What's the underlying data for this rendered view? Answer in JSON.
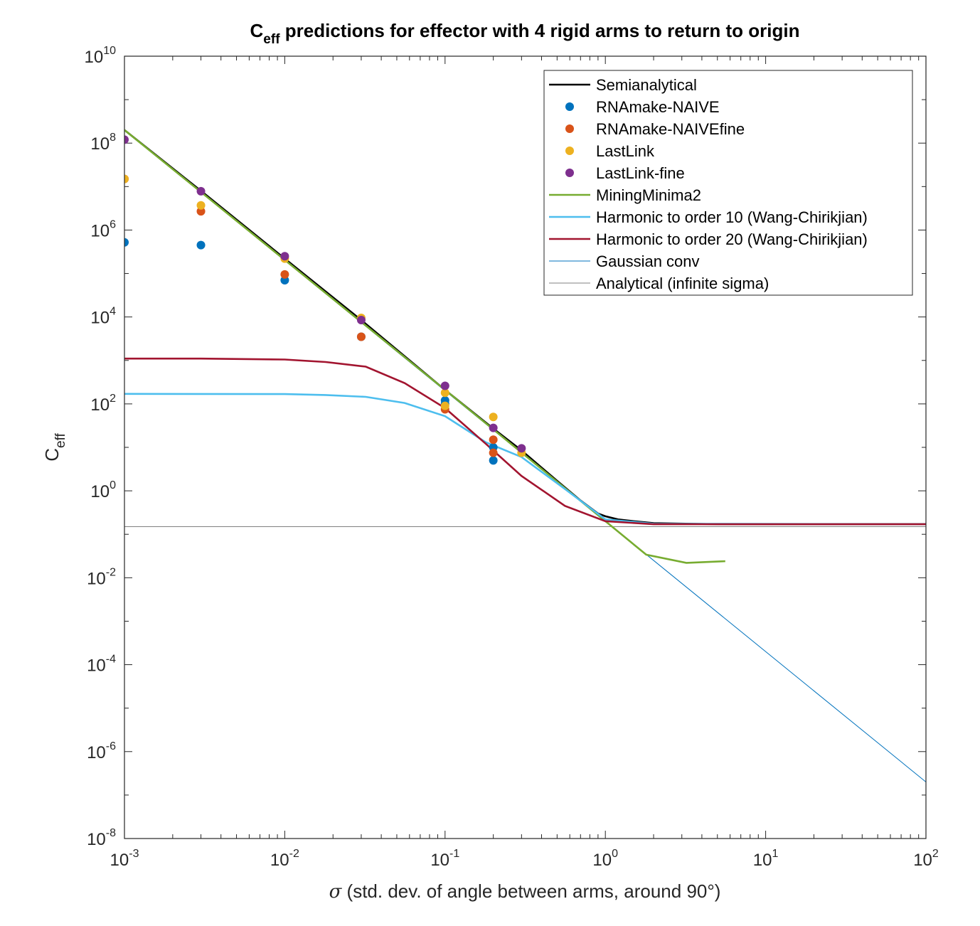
{
  "chart_data": {
    "type": "line",
    "title": {
      "main": "C",
      "sub": "eff",
      "rest": " predictions for effector with 4 rigid arms to return to origin"
    },
    "xlabel": {
      "symbol": "σ",
      "text": " (std. dev. of angle between arms, around 90°)"
    },
    "ylabel": {
      "main": "C",
      "sub": "eff"
    },
    "xscale": "log",
    "yscale": "log",
    "xlim": [
      0.001,
      100
    ],
    "ylim": [
      1e-08,
      10000000000.0
    ],
    "xticks": [
      {
        "value": 0.001,
        "base": "10",
        "exp": "-3"
      },
      {
        "value": 0.01,
        "base": "10",
        "exp": "-2"
      },
      {
        "value": 0.1,
        "base": "10",
        "exp": "-1"
      },
      {
        "value": 1,
        "base": "10",
        "exp": "0"
      },
      {
        "value": 10,
        "base": "10",
        "exp": "1"
      },
      {
        "value": 100,
        "base": "10",
        "exp": "2"
      }
    ],
    "yticks": [
      {
        "value": 1e-08,
        "base": "10",
        "exp": "-8"
      },
      {
        "value": 1e-06,
        "base": "10",
        "exp": "-6"
      },
      {
        "value": 0.0001,
        "base": "10",
        "exp": "-4"
      },
      {
        "value": 0.01,
        "base": "10",
        "exp": "-2"
      },
      {
        "value": 1,
        "base": "10",
        "exp": "0"
      },
      {
        "value": 100.0,
        "base": "10",
        "exp": "2"
      },
      {
        "value": 10000.0,
        "base": "10",
        "exp": "4"
      },
      {
        "value": 1000000.0,
        "base": "10",
        "exp": "6"
      },
      {
        "value": 100000000.0,
        "base": "10",
        "exp": "8"
      },
      {
        "value": 10000000000.0,
        "base": "10",
        "exp": "10"
      }
    ],
    "grid": false,
    "legend_position": "top-right",
    "series": [
      {
        "name": "Semianalytical",
        "kind": "line",
        "color": "#000000",
        "points": [
          [
            0.001,
            200000000.0
          ],
          [
            0.003,
            8000000.0
          ],
          [
            0.01,
            220000.0
          ],
          [
            0.03,
            8500.0
          ],
          [
            0.1,
            210.0
          ],
          [
            0.2,
            27.0
          ],
          [
            0.3,
            8.5
          ],
          [
            0.5,
            1.7
          ],
          [
            0.7,
            0.6
          ],
          [
            0.9,
            0.3
          ],
          [
            1.0,
            0.26
          ],
          [
            1.2,
            0.22
          ],
          [
            1.5,
            0.2
          ],
          [
            2.0,
            0.18
          ],
          [
            5,
            0.17
          ],
          [
            100,
            0.17
          ]
        ]
      },
      {
        "name": "RNAmake-NAIVE",
        "kind": "scatter",
        "color": "#0072BD",
        "points": [
          [
            0.001,
            520000.0
          ],
          [
            0.003,
            450000.0
          ],
          [
            0.01,
            70000.0
          ],
          [
            0.03,
            3500.0
          ],
          [
            0.1,
            100
          ],
          [
            0.1,
            120
          ],
          [
            0.2,
            5
          ],
          [
            0.2,
            10
          ]
        ]
      },
      {
        "name": "RNAmake-NAIVEfine",
        "kind": "scatter",
        "color": "#D95319",
        "points": [
          [
            0.001,
            15000000.0
          ],
          [
            0.003,
            2700000.0
          ],
          [
            0.01,
            95000.0
          ],
          [
            0.03,
            3500.0
          ],
          [
            0.1,
            75
          ],
          [
            0.2,
            7.5
          ],
          [
            0.2,
            15
          ]
        ]
      },
      {
        "name": "LastLink",
        "kind": "scatter",
        "color": "#EDB120",
        "points": [
          [
            0.001,
            15000000.0
          ],
          [
            0.003,
            3700000.0
          ],
          [
            0.01,
            220000.0
          ],
          [
            0.03,
            9500.0
          ],
          [
            0.1,
            90
          ],
          [
            0.1,
            180
          ],
          [
            0.2,
            50
          ],
          [
            0.3,
            7.5
          ]
        ]
      },
      {
        "name": "LastLink-fine",
        "kind": "scatter",
        "color": "#7E2F8E",
        "points": [
          [
            0.001,
            120000000.0
          ],
          [
            0.003,
            7800000.0
          ],
          [
            0.01,
            250000.0
          ],
          [
            0.03,
            8500.0
          ],
          [
            0.1,
            260
          ],
          [
            0.2,
            28
          ],
          [
            0.3,
            9.5
          ]
        ]
      },
      {
        "name": "MiningMinima2",
        "kind": "line",
        "color": "#77AC30",
        "points": [
          [
            0.001,
            200000000.0
          ],
          [
            0.1,
            210.0
          ],
          [
            1.0,
            0.2
          ],
          [
            1.8,
            0.034
          ],
          [
            3.2,
            0.022
          ],
          [
            5.6,
            0.024
          ]
        ]
      },
      {
        "name": "Harmonic to order 10 (Wang-Chirikjian)",
        "kind": "line",
        "color": "#4DBEEE",
        "points": [
          [
            0.001,
            170
          ],
          [
            0.01,
            168
          ],
          [
            0.018,
            160
          ],
          [
            0.032,
            145
          ],
          [
            0.056,
            105
          ],
          [
            0.1,
            52
          ],
          [
            0.18,
            13
          ],
          [
            0.3,
            6
          ],
          [
            0.56,
            1.1
          ],
          [
            1.0,
            0.22
          ],
          [
            2.0,
            0.175
          ],
          [
            100,
            0.17
          ]
        ]
      },
      {
        "name": "Harmonic to order 20 (Wang-Chirikjian)",
        "kind": "line",
        "color": "#A2142F",
        "points": [
          [
            0.001,
            1100
          ],
          [
            0.003,
            1100
          ],
          [
            0.01,
            1050
          ],
          [
            0.018,
            920
          ],
          [
            0.032,
            720
          ],
          [
            0.056,
            300
          ],
          [
            0.1,
            80
          ],
          [
            0.18,
            12
          ],
          [
            0.3,
            2.2
          ],
          [
            0.56,
            0.45
          ],
          [
            1.0,
            0.2
          ],
          [
            2.0,
            0.17
          ],
          [
            100,
            0.17
          ]
        ]
      },
      {
        "name": "Gaussian conv",
        "kind": "thinline",
        "color": "#0072BD",
        "points": [
          [
            0.001,
            200000000.0
          ],
          [
            100,
            2e-07
          ]
        ]
      },
      {
        "name": "Analytical (infinite sigma)",
        "kind": "thinline",
        "color": "#808080",
        "points": [
          [
            0.001,
            0.15
          ],
          [
            100,
            0.15
          ]
        ]
      }
    ]
  }
}
